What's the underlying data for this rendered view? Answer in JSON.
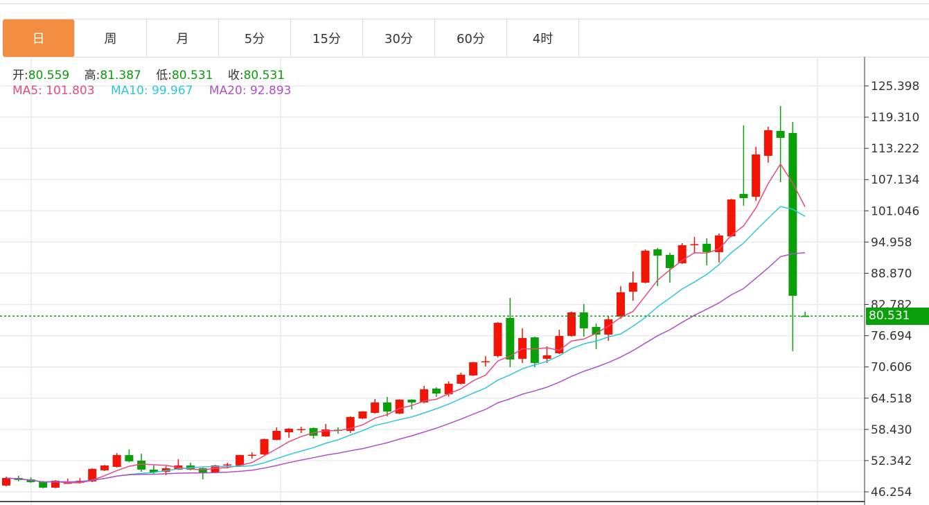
{
  "tabs": [
    {
      "label": "日",
      "active": true
    },
    {
      "label": "周"
    },
    {
      "label": "月"
    },
    {
      "label": "5分"
    },
    {
      "label": "15分"
    },
    {
      "label": "30分"
    },
    {
      "label": "60分"
    },
    {
      "label": "4时"
    }
  ],
  "info": {
    "open_label": "开:",
    "open": "80.559",
    "high_label": "高:",
    "high": "81.387",
    "low_label": "低:",
    "low": "80.531",
    "close_label": "收:",
    "close": "80.531"
  },
  "ma": {
    "ma5": "MA5: 101.803",
    "ma10": "MA10: 99.967",
    "ma20": "MA20: 92.893"
  },
  "last_price": "80.531",
  "colors": {
    "up": "#f21505",
    "down": "#0aa00a",
    "ma5": "#e84a7a",
    "ma10": "#2fc6dc",
    "ma20": "#b04fc8",
    "active_tab": "#f28c41"
  },
  "chart_data": {
    "type": "candlestick",
    "ylim": [
      44.5,
      127
    ],
    "yticks": [
      "125.398",
      "119.310",
      "113.222",
      "107.134",
      "101.046",
      "94.958",
      "88.870",
      "82.782",
      "76.694",
      "70.606",
      "64.518",
      "58.430",
      "52.342",
      "46.254"
    ],
    "grid": true,
    "last_price_line": 80.531,
    "ohlc": [
      [
        47.48,
        49.23,
        47.34,
        48.96
      ],
      [
        48.96,
        49.37,
        48.29,
        48.56
      ],
      [
        48.69,
        49.1,
        48.02,
        48.15
      ],
      [
        48.29,
        48.4,
        46.95,
        47.07
      ],
      [
        47.07,
        48.55,
        46.95,
        48.42
      ],
      [
        47.88,
        48.83,
        47.8,
        48.02
      ],
      [
        48.02,
        48.96,
        47.88,
        48.42
      ],
      [
        48.29,
        50.85,
        48.15,
        50.72
      ],
      [
        50.45,
        51.5,
        50.3,
        51.4
      ],
      [
        51.12,
        53.82,
        51.0,
        53.42
      ],
      [
        53.42,
        54.5,
        52.0,
        52.21
      ],
      [
        52.34,
        53.69,
        50.18,
        50.58
      ],
      [
        50.58,
        51.4,
        49.77,
        50.04
      ],
      [
        50.18,
        51.26,
        49.5,
        50.85
      ],
      [
        50.58,
        52.61,
        50.5,
        51.4
      ],
      [
        51.4,
        51.93,
        50.45,
        50.58
      ],
      [
        50.85,
        50.99,
        48.69,
        49.91
      ],
      [
        50.04,
        51.5,
        49.91,
        51.4
      ],
      [
        51.4,
        51.93,
        50.85,
        51.6
      ],
      [
        51.4,
        53.5,
        51.3,
        53.42
      ],
      [
        53.28,
        53.96,
        52.74,
        53.48
      ],
      [
        53.55,
        56.65,
        53.4,
        56.52
      ],
      [
        56.39,
        58.82,
        56.3,
        58.14
      ],
      [
        57.87,
        58.68,
        56.79,
        58.55
      ],
      [
        58.34,
        58.95,
        57.74,
        58.48
      ],
      [
        58.68,
        58.82,
        56.66,
        57.2
      ],
      [
        57.06,
        59.5,
        56.95,
        58.41
      ],
      [
        58.34,
        58.82,
        57.6,
        58.21
      ],
      [
        58.14,
        60.98,
        57.74,
        60.84
      ],
      [
        60.57,
        62.0,
        60.4,
        61.92
      ],
      [
        61.65,
        64.35,
        61.5,
        63.68
      ],
      [
        63.68,
        64.76,
        60.98,
        61.92
      ],
      [
        61.52,
        64.3,
        61.4,
        64.22
      ],
      [
        64.22,
        64.3,
        62.33,
        63.68
      ],
      [
        63.68,
        66.92,
        63.5,
        66.25
      ],
      [
        66.38,
        66.65,
        64.76,
        65.43
      ],
      [
        65.3,
        67.8,
        64.8,
        67.33
      ],
      [
        67.33,
        69.49,
        67.2,
        69.08
      ],
      [
        68.95,
        71.6,
        68.8,
        71.51
      ],
      [
        71.58,
        72.73,
        70.7,
        71.71
      ],
      [
        72.73,
        79.35,
        72.46,
        79.21
      ],
      [
        80.16,
        84.07,
        70.57,
        72.06
      ],
      [
        72.19,
        78.13,
        71.38,
        76.24
      ],
      [
        76.38,
        76.5,
        70.57,
        71.38
      ],
      [
        72.19,
        74.62,
        71.38,
        72.86
      ],
      [
        73.27,
        77.86,
        73.1,
        76.65
      ],
      [
        76.65,
        81.4,
        76.5,
        81.24
      ],
      [
        81.24,
        82.86,
        76.51,
        78.13
      ],
      [
        78.4,
        79.08,
        74.08,
        76.91
      ],
      [
        76.91,
        80.56,
        75.7,
        79.89
      ],
      [
        80.43,
        86.37,
        80.02,
        85.15
      ],
      [
        85.29,
        89.21,
        83.53,
        87.04
      ],
      [
        87.04,
        93.53,
        86.9,
        93.26
      ],
      [
        93.53,
        93.8,
        86.37,
        92.31
      ],
      [
        92.45,
        92.85,
        87.04,
        89.88
      ],
      [
        90.82,
        94.74,
        90.7,
        94.34
      ],
      [
        94.4,
        95.95,
        92.72,
        94.54
      ],
      [
        94.61,
        95.69,
        90.42,
        92.99
      ],
      [
        92.99,
        96.63,
        90.96,
        96.23
      ],
      [
        96.09,
        103.4,
        95.9,
        103.25
      ],
      [
        104.33,
        117.7,
        102.04,
        103.52
      ],
      [
        103.79,
        113.51,
        102.98,
        112.03
      ],
      [
        111.76,
        117.43,
        110.41,
        116.76
      ],
      [
        116.62,
        121.48,
        106.63,
        115.27
      ],
      [
        116.22,
        118.38,
        73.67,
        84.48
      ],
      [
        80.559,
        81.387,
        80.531,
        80.531
      ]
    ]
  }
}
